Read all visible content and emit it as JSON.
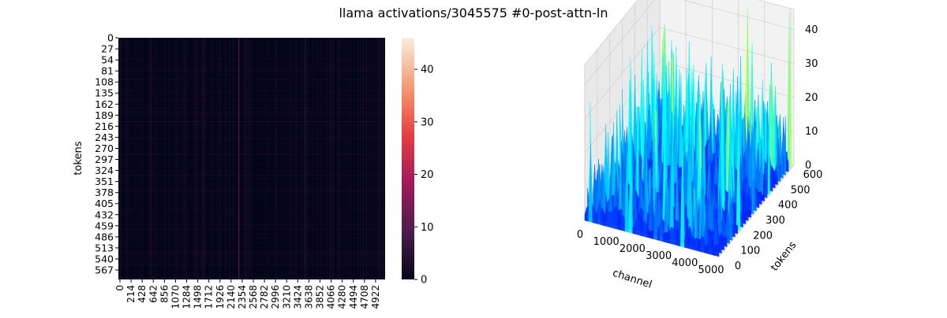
{
  "figure": {
    "title": "llama activations/3045575 #0-post-attn-ln"
  },
  "chart_data": [
    {
      "type": "heatmap",
      "ylabel": "tokens",
      "xlabel": "",
      "x_ticks": [
        "0",
        "214",
        "428",
        "642",
        "856",
        "1070",
        "1284",
        "1498",
        "1712",
        "1926",
        "2140",
        "2354",
        "2568",
        "2782",
        "2996",
        "3210",
        "3424",
        "3638",
        "3852",
        "4066",
        "4280",
        "4494",
        "4708",
        "4922"
      ],
      "y_ticks": [
        "0",
        "27",
        "54",
        "81",
        "108",
        "135",
        "162",
        "189",
        "216",
        "243",
        "270",
        "297",
        "324",
        "351",
        "378",
        "405",
        "432",
        "459",
        "486",
        "513",
        "540",
        "567"
      ],
      "x_range": [
        0,
        5120
      ],
      "y_range": [
        0,
        590
      ],
      "colorbar": {
        "ticks": [
          "0",
          "10",
          "20",
          "30",
          "40"
        ],
        "range": [
          0,
          46
        ]
      },
      "colormap": [
        "#03051a",
        "#4c1d4b",
        "#a11a5b",
        "#e83f3f",
        "#f69c73",
        "#faebdd"
      ],
      "hot_columns": [
        2300
      ],
      "background_value_range": [
        0,
        4
      ]
    },
    {
      "type": "surface",
      "xlabel": "channel",
      "ylabel": "tokens",
      "x_ticks": [
        "0",
        "1000",
        "2000",
        "3000",
        "4000",
        "5000"
      ],
      "y_ticks": [
        "0",
        "100",
        "200",
        "300",
        "400",
        "500",
        "600"
      ],
      "z_ticks": [
        "0",
        "10",
        "20",
        "30",
        "40"
      ],
      "x_range": [
        0,
        5120
      ],
      "y_range": [
        0,
        600
      ],
      "z_range": [
        0,
        46
      ],
      "colormap": [
        "#0000ff",
        "#0080ff",
        "#00ffff",
        "#80ff80",
        "#ffff00"
      ]
    }
  ]
}
